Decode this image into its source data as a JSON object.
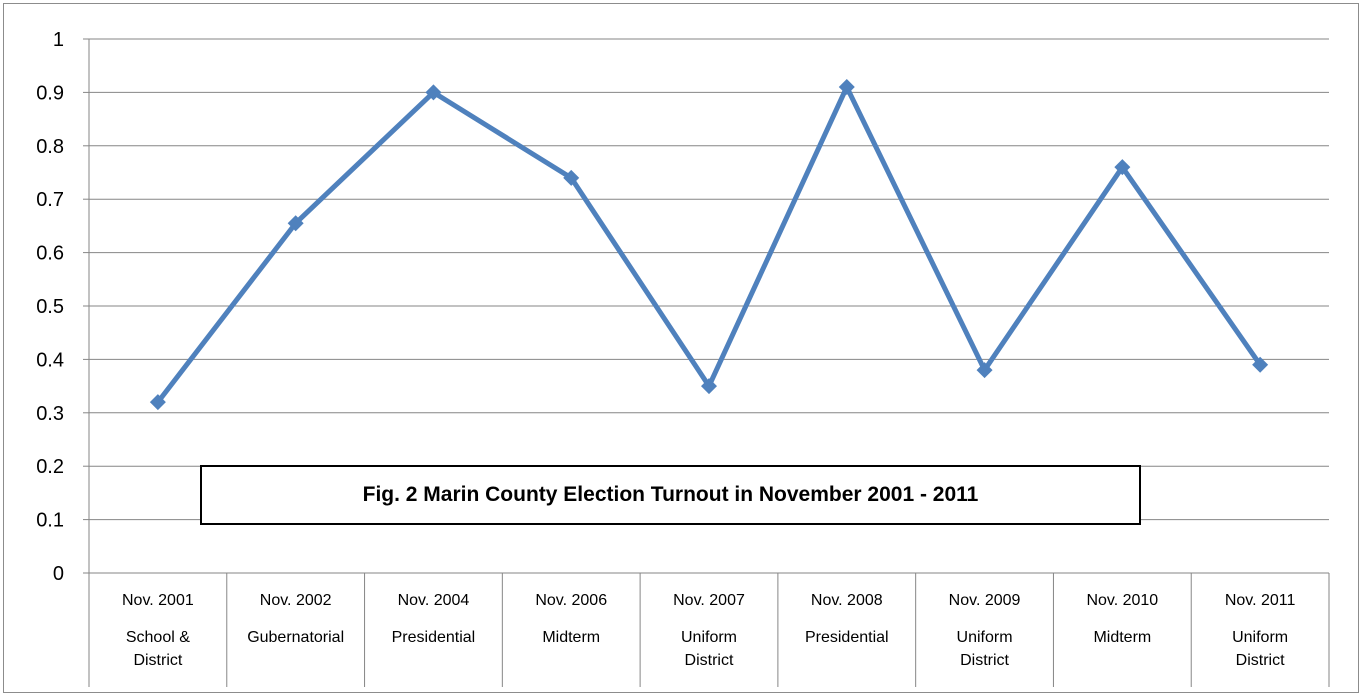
{
  "chart_data": {
    "type": "line",
    "title": "Fig. 2 Marin County Election Turnout in November 2001 - 2011",
    "xlabel": "",
    "ylabel": "",
    "ylim": [
      0,
      1
    ],
    "y_ticks": [
      "0",
      "0.1",
      "0.2",
      "0.3",
      "0.4",
      "0.5",
      "0.6",
      "0.7",
      "0.8",
      "0.9",
      "1"
    ],
    "grid": true,
    "legend": "none",
    "categories": [
      {
        "date": "Nov. 2001",
        "type": "School & District"
      },
      {
        "date": "Nov. 2002",
        "type": "Gubernatorial"
      },
      {
        "date": "Nov. 2004",
        "type": "Presidential"
      },
      {
        "date": "Nov. 2006",
        "type": "Midterm"
      },
      {
        "date": "Nov. 2007",
        "type": "Uniform District"
      },
      {
        "date": "Nov. 2008",
        "type": "Presidential"
      },
      {
        "date": "Nov. 2009",
        "type": "Uniform District"
      },
      {
        "date": "Nov. 2010",
        "type": "Midterm"
      },
      {
        "date": "Nov. 2011",
        "type": "Uniform District"
      }
    ],
    "series": [
      {
        "values": [
          0.32,
          0.655,
          0.9,
          0.74,
          0.35,
          0.91,
          0.38,
          0.76,
          0.39
        ],
        "color": "#4F81BD",
        "marker": "diamond"
      }
    ]
  }
}
